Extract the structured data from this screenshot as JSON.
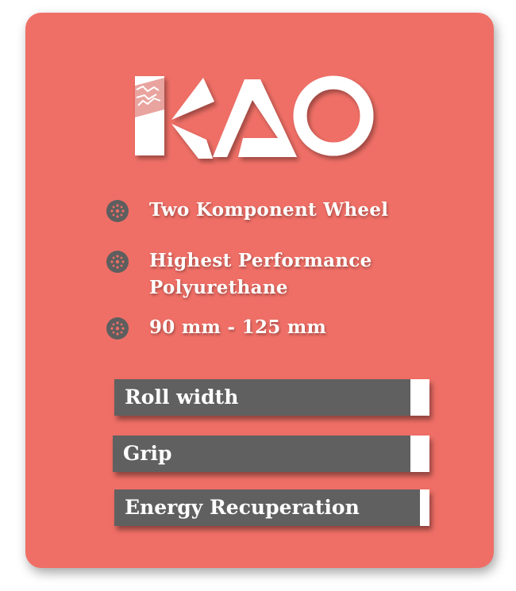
{
  "brand": {
    "logo_text": "KAO",
    "accent_color": "#ef6f66"
  },
  "features": [
    {
      "icon": "wheel-icon",
      "lines": [
        "Two Komponent Wheel"
      ]
    },
    {
      "icon": "wheel-icon",
      "lines": [
        "Highest Performance",
        "Polyurethane"
      ]
    },
    {
      "icon": "wheel-icon",
      "lines": [
        "90 mm - 125 mm"
      ]
    }
  ],
  "ratings": [
    {
      "label": "Roll width",
      "level_percent": 94
    },
    {
      "label": "Grip",
      "level_percent": 94
    },
    {
      "label": "Energy Recuperation",
      "level_percent": 97
    }
  ]
}
